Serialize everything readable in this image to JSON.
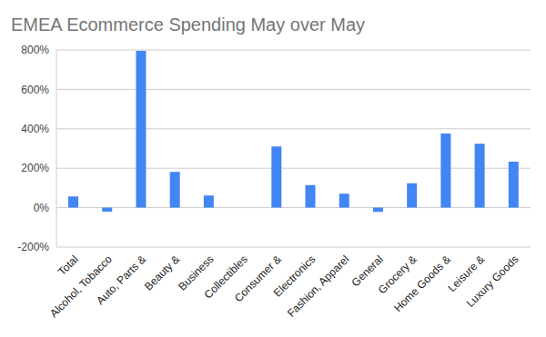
{
  "chart_data": {
    "type": "bar",
    "title": "EMEA Ecommerce Spending May over May",
    "categories": [
      "Total",
      "Alcohol, Tobacco",
      "Auto, Parts &",
      "Beauty &",
      "Business",
      "Collectibles",
      "Consumer &",
      "Electronics",
      "Fashion, Apparel",
      "General",
      "Grocery &",
      "Home Goods &",
      "Leisure &",
      "Luxury Goods"
    ],
    "values": [
      57,
      -20,
      795,
      181,
      62,
      0,
      310,
      114,
      71,
      -22,
      124,
      376,
      324,
      233
    ],
    "color": "#4285f4",
    "ylim": [
      -200,
      800
    ],
    "yticks": [
      {
        "value": -200,
        "label": "-200%"
      },
      {
        "value": 0,
        "label": "0%"
      },
      {
        "value": 200,
        "label": "200%"
      },
      {
        "value": 400,
        "label": "400%"
      },
      {
        "value": 600,
        "label": "600%"
      },
      {
        "value": 800,
        "label": "800%"
      }
    ],
    "grid": true
  }
}
